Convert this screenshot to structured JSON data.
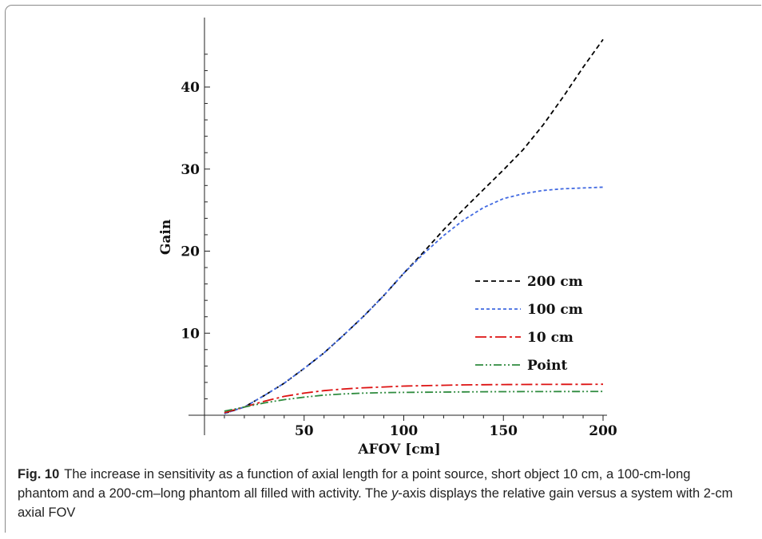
{
  "chart_data": {
    "type": "line",
    "xlabel": "AFOV [cm]",
    "ylabel": "Gain",
    "xlim": [
      0,
      200
    ],
    "ylim": [
      0,
      46
    ],
    "x_ticks": [
      50,
      100,
      150,
      200
    ],
    "y_ticks": [
      10,
      20,
      30,
      40
    ],
    "legend_position": "center-right",
    "grid": false,
    "x": [
      10,
      20,
      30,
      40,
      50,
      60,
      70,
      80,
      90,
      100,
      110,
      120,
      130,
      140,
      150,
      160,
      170,
      180,
      190,
      200
    ],
    "series": [
      {
        "name": "200 cm",
        "color": "#000000",
        "dash": "6,4",
        "values": [
          0.2,
          1.0,
          2.4,
          3.9,
          5.7,
          7.6,
          9.8,
          12.1,
          14.6,
          17.3,
          19.9,
          22.6,
          25.1,
          27.5,
          29.9,
          32.4,
          35.4,
          38.8,
          42.4,
          45.8
        ]
      },
      {
        "name": "100 cm",
        "color": "#4169e1",
        "dash": "4,3",
        "values": [
          0.2,
          1.0,
          2.4,
          3.9,
          5.7,
          7.6,
          9.8,
          12.1,
          14.6,
          17.3,
          19.7,
          21.9,
          23.8,
          25.3,
          26.4,
          27.0,
          27.4,
          27.6,
          27.7,
          27.8
        ]
      },
      {
        "name": "10 cm",
        "color": "#dd1111",
        "dash": "14,4,3,4",
        "values": [
          0.3,
          1.0,
          1.7,
          2.3,
          2.7,
          3.0,
          3.2,
          3.35,
          3.45,
          3.55,
          3.6,
          3.65,
          3.7,
          3.72,
          3.74,
          3.75,
          3.76,
          3.77,
          3.77,
          3.78
        ]
      },
      {
        "name": "Point",
        "color": "#2e8b3e",
        "dash": "10,3,2,3,2,3",
        "values": [
          0.5,
          1.0,
          1.5,
          1.9,
          2.2,
          2.45,
          2.6,
          2.7,
          2.75,
          2.78,
          2.8,
          2.82,
          2.84,
          2.86,
          2.87,
          2.88,
          2.88,
          2.89,
          2.89,
          2.9
        ]
      }
    ]
  },
  "caption": {
    "fig_label": "Fig. 10",
    "text_before_italic": "The increase in sensitivity as a function of axial length for a point source, short object 10 cm, a 100-cm-long phantom and a 200-cm–long phantom all filled with activity. The ",
    "italic": "y",
    "text_after_italic": "-axis displays the relative gain versus a system with 2-cm axial FOV"
  }
}
